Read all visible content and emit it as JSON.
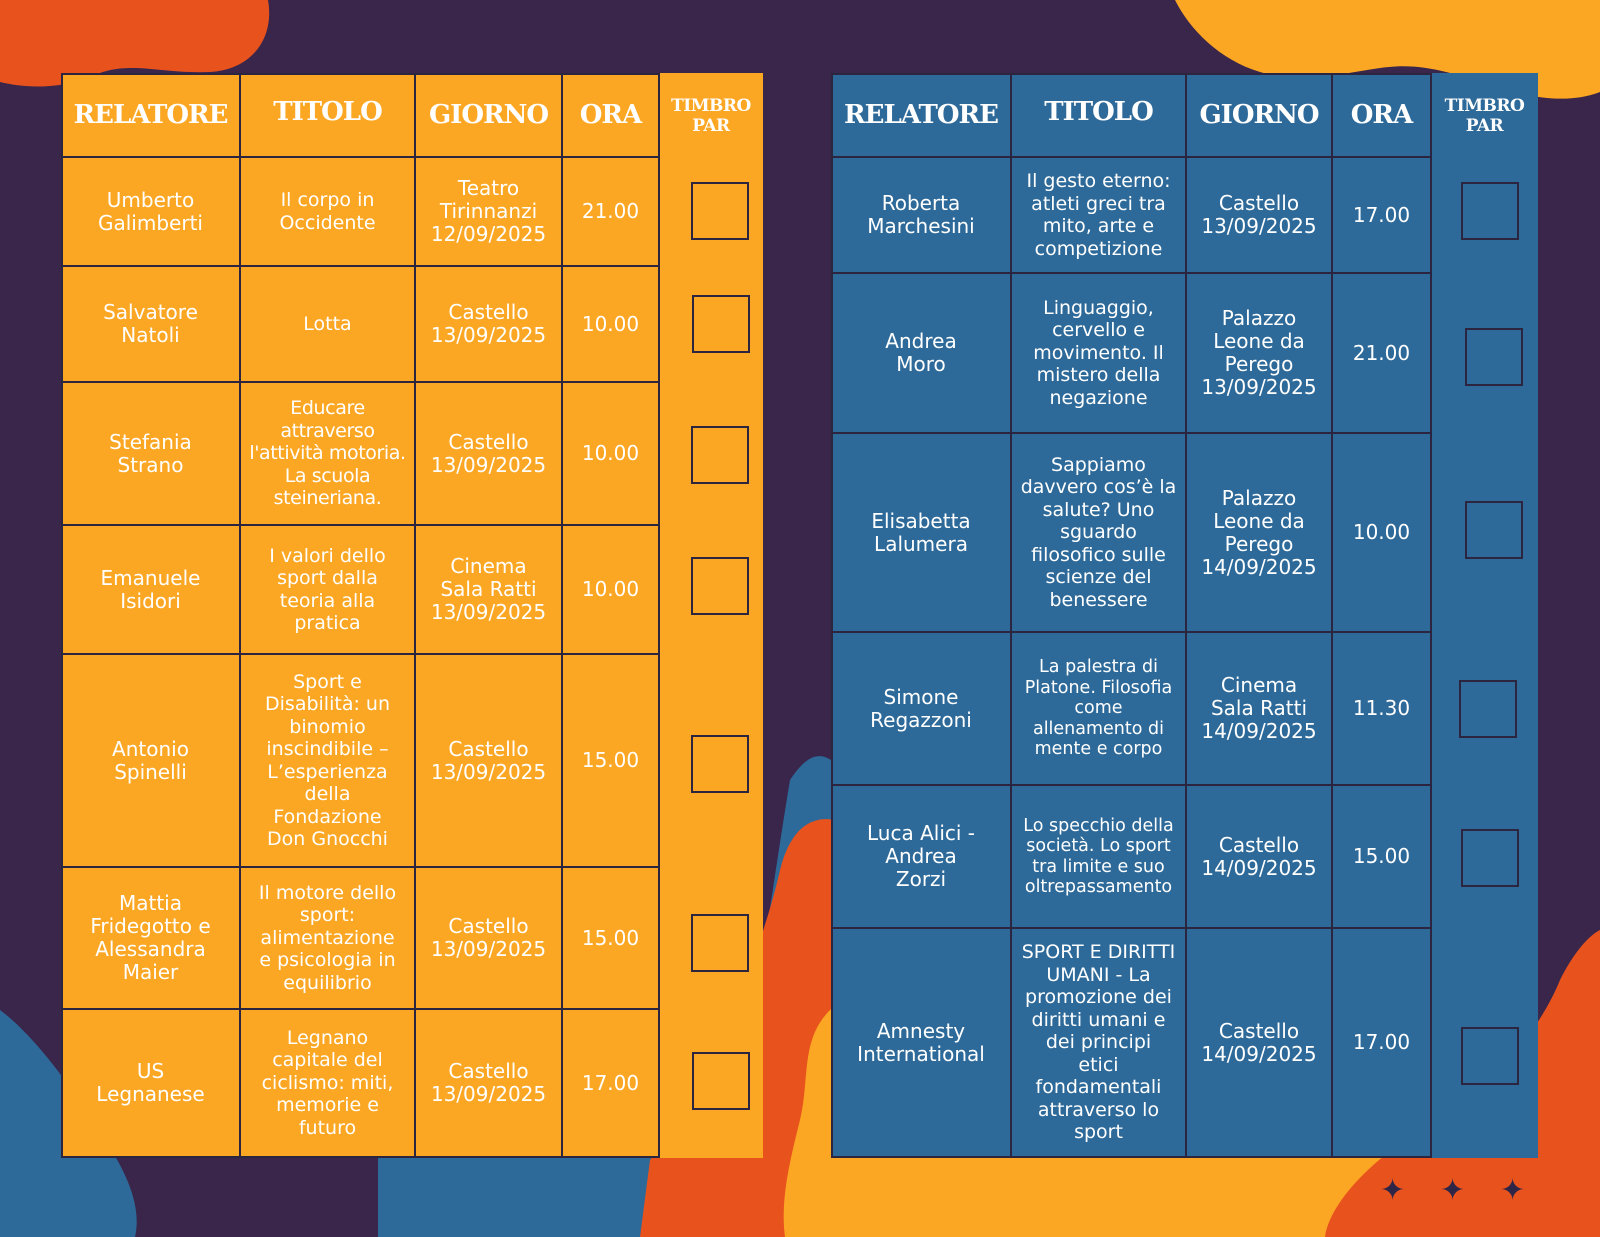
{
  "colors": {
    "background": "#39264a",
    "orange_panel": "#fca723",
    "blue_panel": "#2e6a99",
    "grid_line": "#2b2540",
    "accent_red": "#e8521d"
  },
  "left": {
    "headers": {
      "speaker": "RELATORE",
      "title": "TITOLO",
      "day": "GIORNO",
      "time": "ORA",
      "stamp": "TIMBRO\nPAR"
    },
    "rows": [
      {
        "speaker": "Umberto\nGalimberti",
        "title": "Il corpo in\nOccidente",
        "day": "Teatro\nTirinnanzi\n12/09/2025",
        "time": "21.00"
      },
      {
        "speaker": "Salvatore\nNatoli",
        "title": "Lotta",
        "day": "Castello\n13/09/2025",
        "time": "10.00"
      },
      {
        "speaker": "Stefania\nStrano",
        "title": "Educare\nattraverso\nl'attività motoria.\nLa scuola\nsteineriana.",
        "day": "Castello\n13/09/2025",
        "time": "10.00"
      },
      {
        "speaker": "Emanuele\nIsidori",
        "title": "I valori dello\nsport dalla\nteoria alla\npratica",
        "day": "Cinema\nSala Ratti\n13/09/2025",
        "time": "10.00"
      },
      {
        "speaker": "Antonio\nSpinelli",
        "title": "Sport e\nDisabilità: un\nbinomio\ninscindibile –\nL’esperienza\ndella\nFondazione\nDon Gnocchi",
        "day": "Castello\n13/09/2025",
        "time": "15.00"
      },
      {
        "speaker": "Mattia\nFridegotto e\nAlessandra\nMaier",
        "title": "Il motore dello\nsport:\nalimentazione\ne psicologia in\nequilibrio",
        "day": "Castello\n13/09/2025",
        "time": "15.00"
      },
      {
        "speaker": "US\nLegnanese",
        "title": "Legnano\ncapitale del\nciclismo: miti,\nmemorie e\nfuturo",
        "day": "Castello\n13/09/2025",
        "time": "17.00"
      }
    ]
  },
  "right": {
    "headers": {
      "speaker": "RELATORE",
      "title": "TITOLO",
      "day": "GIORNO",
      "time": "ORA",
      "stamp": "TIMBRO\nPAR"
    },
    "rows": [
      {
        "speaker": "Roberta\nMarchesini",
        "title": "Il gesto eterno:\natleti greci tra\nmito, arte e\ncompetizione",
        "day": "Castello\n13/09/2025",
        "time": "17.00"
      },
      {
        "speaker": "Andrea\nMoro",
        "title": "Linguaggio,\ncervello e\nmovimento. Il\nmistero della\nnegazione",
        "day": "Palazzo\nLeone da\nPerego\n13/09/2025",
        "time": "21.00"
      },
      {
        "speaker": "Elisabetta\nLalumera",
        "title": "Sappiamo\ndavvero cos’è la\nsalute? Uno\nsguardo\nfilosofico sulle\nscienze del\nbenessere",
        "day": "Palazzo\nLeone da\nPerego\n14/09/2025",
        "time": "10.00"
      },
      {
        "speaker": "Simone\nRegazzoni",
        "title": "La palestra di\nPlatone. Filosofia\ncome\nallenamento di\nmente e corpo",
        "day": "Cinema\nSala Ratti\n14/09/2025",
        "time": "11.30"
      },
      {
        "speaker": "Luca Alici -\nAndrea\nZorzi",
        "title": "Lo specchio della\nsocietà. Lo sport\ntra limite e suo\noltrepassamento",
        "day": "Castello\n14/09/2025",
        "time": "15.00"
      },
      {
        "speaker": "Amnesty\nInternational",
        "title": "SPORT E DIRITTI\nUMANI - La\npromozione dei\ndiritti umani e\ndei principi\netici\nfondamentali\nattraverso lo\nsport",
        "day": "Castello\n14/09/2025",
        "time": "17.00"
      }
    ]
  },
  "decoration": {
    "star_glyph": "✦"
  }
}
